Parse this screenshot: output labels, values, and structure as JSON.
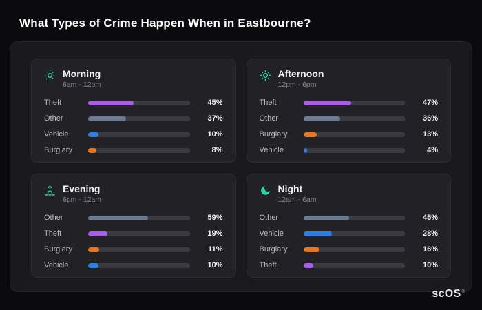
{
  "title": "What Types of Crime Happen When in Eastbourne?",
  "brand": {
    "text": "scOS",
    "reg_mark": "®"
  },
  "colors": {
    "Theft": "#a95ce8",
    "Other": "#6b7a90",
    "Vehicle": "#2f7fe0",
    "Burglary": "#e8761f",
    "icon_accent": "#2dd4a8",
    "bar_track": "#3a3a41"
  },
  "chart_data": [
    {
      "type": "bar",
      "title": "Morning",
      "subtitle": "6am - 12pm",
      "icon": "morning-sun-icon",
      "categories": [
        "Theft",
        "Other",
        "Vehicle",
        "Burglary"
      ],
      "values": [
        45,
        37,
        10,
        8
      ],
      "value_suffix": "%",
      "xlim": [
        0,
        100
      ]
    },
    {
      "type": "bar",
      "title": "Afternoon",
      "subtitle": "12pm - 6pm",
      "icon": "afternoon-sun-icon",
      "categories": [
        "Theft",
        "Other",
        "Burglary",
        "Vehicle"
      ],
      "values": [
        47,
        36,
        13,
        4
      ],
      "value_suffix": "%",
      "xlim": [
        0,
        100
      ]
    },
    {
      "type": "bar",
      "title": "Evening",
      "subtitle": "6pm - 12am",
      "icon": "sunset-icon",
      "categories": [
        "Other",
        "Theft",
        "Burglary",
        "Vehicle"
      ],
      "values": [
        59,
        19,
        11,
        10
      ],
      "value_suffix": "%",
      "xlim": [
        0,
        100
      ]
    },
    {
      "type": "bar",
      "title": "Night",
      "subtitle": "12am - 6am",
      "icon": "moon-icon",
      "categories": [
        "Other",
        "Vehicle",
        "Burglary",
        "Theft"
      ],
      "values": [
        45,
        28,
        16,
        10
      ],
      "value_suffix": "%",
      "xlim": [
        0,
        100
      ]
    }
  ]
}
